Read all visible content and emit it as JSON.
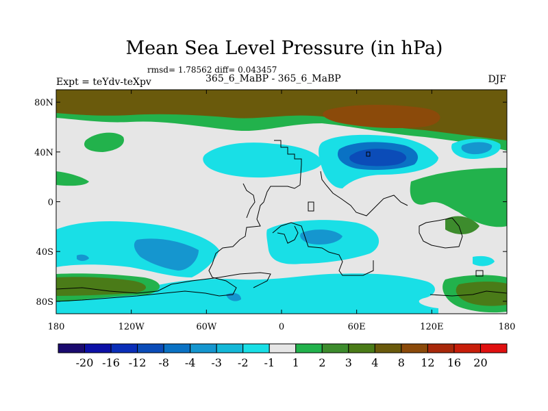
{
  "map": {
    "title": "Mean Sea Level Pressure (in hPa)",
    "stats": "rmsd= 1.78562 diff= 0.043457",
    "subtitle": "365_6_MaBP - 365_6_MaBP",
    "left_label": "Expt = teYdv-teXpv",
    "season": "DJF",
    "lat_ticks": [
      "80N",
      "40N",
      "0",
      "40S",
      "80S"
    ],
    "lat_values": [
      80,
      40,
      0,
      -40,
      -80
    ],
    "lon_ticks": [
      "180",
      "120W",
      "60W",
      "0",
      "60E",
      "120E",
      "180"
    ],
    "lon_values": [
      -180,
      -120,
      -60,
      0,
      60,
      120,
      180
    ]
  },
  "colorbar": {
    "labels": [
      "-20",
      "-16",
      "-12",
      "-8",
      "-4",
      "-3",
      "-2",
      "-1",
      "1",
      "2",
      "3",
      "4",
      "8",
      "12",
      "16",
      "20"
    ],
    "colors": [
      "#1a0a6e",
      "#0c10a6",
      "#0a2eb8",
      "#0b4cb8",
      "#0a72c4",
      "#1596cf",
      "#14b8d8",
      "#19dfe6",
      "#e6e6e6",
      "#22b24c",
      "#3d8c2d",
      "#4a7b18",
      "#6a5a0c",
      "#8b4a0a",
      "#a8280a",
      "#c81e0a",
      "#e01010"
    ]
  }
}
